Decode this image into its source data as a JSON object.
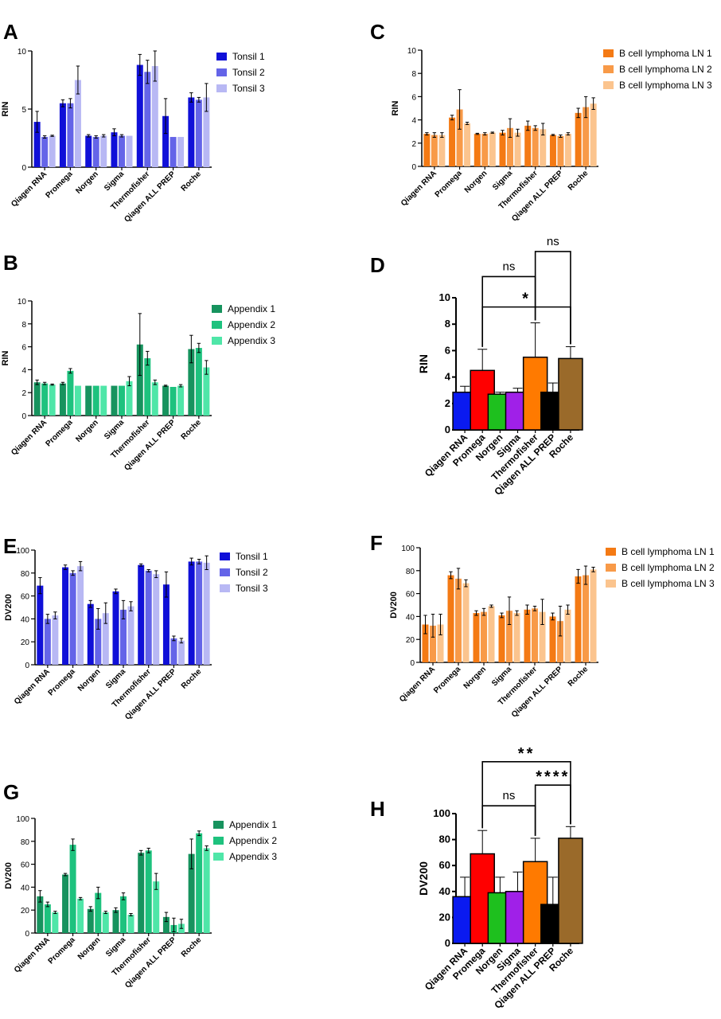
{
  "categories": [
    "Qiagen RNA",
    "Promega",
    "Norgen",
    "Sigma",
    "Thermofisher",
    "Qiagen ALL PREP",
    "Roche"
  ],
  "colors": {
    "tonsil": [
      "#1010d8",
      "#6464e8",
      "#b8b8f4"
    ],
    "lymphoma": [
      "#f47a14",
      "#f89a48",
      "#fbc48e"
    ],
    "appendix": [
      "#17935e",
      "#1ec27e",
      "#4fe6a8"
    ],
    "methods": [
      "#0a1af0",
      "#ff0000",
      "#1ec01e",
      "#a020e8",
      "#ff7a00",
      "#000000",
      "#9a6a2a"
    ]
  },
  "chart_data": [
    {
      "panel": "A",
      "type": "bar",
      "ylabel": "RIN",
      "ylim": [
        0,
        10
      ],
      "yticks": [
        0,
        5,
        10
      ],
      "palette": "tonsil",
      "legend": "right",
      "series": [
        {
          "name": "Tonsil 1",
          "values": [
            3.9,
            5.5,
            2.7,
            3.0,
            8.8,
            4.4,
            6.0
          ],
          "errors": [
            0.9,
            0.3,
            0.1,
            0.3,
            0.9,
            1.5,
            0.4
          ]
        },
        {
          "name": "Tonsil 2",
          "values": [
            2.6,
            5.5,
            2.6,
            2.7,
            8.2,
            2.6,
            5.8
          ],
          "errors": [
            0.1,
            0.4,
            0.1,
            0.1,
            1.0,
            0,
            0.2
          ]
        },
        {
          "name": "Tonsil 3",
          "values": [
            2.7,
            7.5,
            2.7,
            2.7,
            8.7,
            2.6,
            6.0
          ],
          "errors": [
            0.05,
            1.2,
            0.1,
            0,
            1.3,
            0,
            1.2
          ]
        }
      ]
    },
    {
      "panel": "C",
      "type": "bar",
      "ylabel": "RIN",
      "ylim": [
        0,
        10
      ],
      "yticks": [
        0,
        2,
        4,
        6,
        8,
        10
      ],
      "palette": "lymphoma",
      "legend": "right",
      "series": [
        {
          "name": "B cell lymphoma LN 1",
          "values": [
            2.8,
            4.2,
            2.8,
            2.9,
            3.5,
            2.7,
            4.6
          ],
          "errors": [
            0.1,
            0.2,
            0.05,
            0.2,
            0.4,
            0.05,
            0.4
          ]
        },
        {
          "name": "B cell lymphoma LN 2",
          "values": [
            2.7,
            4.9,
            2.8,
            3.3,
            3.3,
            2.6,
            5.1
          ],
          "errors": [
            0.2,
            1.7,
            0.1,
            0.8,
            0.2,
            0.1,
            0.9
          ]
        },
        {
          "name": "B cell lymphoma LN 3",
          "values": [
            2.7,
            3.7,
            2.9,
            2.9,
            3.2,
            2.8,
            5.4
          ],
          "errors": [
            0.2,
            0.1,
            0.05,
            0.3,
            0.5,
            0.1,
            0.5
          ]
        }
      ]
    },
    {
      "panel": "B",
      "type": "bar",
      "ylabel": "RIN",
      "ylim": [
        0,
        10
      ],
      "yticks": [
        0,
        2,
        4,
        6,
        8,
        10
      ],
      "palette": "appendix",
      "legend": "right",
      "series": [
        {
          "name": "Appendix 1",
          "values": [
            2.9,
            2.8,
            2.6,
            2.6,
            6.2,
            2.6,
            5.8
          ],
          "errors": [
            0.2,
            0.1,
            0,
            0,
            2.7,
            0.05,
            1.2
          ]
        },
        {
          "name": "Appendix 2",
          "values": [
            2.8,
            3.9,
            2.6,
            2.6,
            5.0,
            2.5,
            5.9
          ],
          "errors": [
            0.1,
            0.2,
            0,
            0,
            0.6,
            0,
            0.4
          ]
        },
        {
          "name": "Appendix 3",
          "values": [
            2.7,
            2.6,
            2.6,
            3.0,
            2.9,
            2.6,
            4.2
          ],
          "errors": [
            0.05,
            0,
            0,
            0.4,
            0.2,
            0.1,
            0.6
          ]
        }
      ]
    },
    {
      "panel": "D",
      "type": "bar",
      "ylabel": "RIN",
      "ylim": [
        0,
        10
      ],
      "yticks": [
        0,
        2,
        4,
        6,
        8,
        10
      ],
      "palette": "methods",
      "legend": "none",
      "series": [
        {
          "name": "",
          "values": [
            2.85,
            4.5,
            2.7,
            2.85,
            5.5,
            2.85,
            5.4
          ],
          "errors": [
            0.45,
            1.6,
            0.15,
            0.3,
            2.6,
            0.7,
            0.9
          ]
        }
      ],
      "annotations": [
        {
          "from": 1,
          "to": 4,
          "label": "ns",
          "level": 11.6
        },
        {
          "from": 4,
          "to": 6,
          "label": "ns",
          "level": 13.5
        },
        {
          "from": 1,
          "to": 6,
          "label": "*",
          "level": 9.3
        }
      ]
    },
    {
      "panel": "E",
      "type": "bar",
      "ylabel": "DV200",
      "ylim": [
        0,
        100
      ],
      "yticks": [
        0,
        20,
        40,
        60,
        80,
        100
      ],
      "palette": "tonsil",
      "legend": "right",
      "series": [
        {
          "name": "Tonsil 1",
          "values": [
            69,
            85,
            53,
            64,
            87,
            70,
            90
          ],
          "errors": [
            7,
            2,
            3,
            2,
            1,
            11,
            3
          ]
        },
        {
          "name": "Tonsil 2",
          "values": [
            40,
            80,
            40,
            48,
            82,
            23,
            90
          ],
          "errors": [
            4,
            2,
            9,
            8,
            1,
            2,
            2
          ]
        },
        {
          "name": "Tonsil 3",
          "values": [
            43,
            86,
            45,
            51,
            79,
            21,
            89
          ],
          "errors": [
            3,
            4,
            9,
            4,
            3,
            2,
            6
          ]
        }
      ]
    },
    {
      "panel": "F",
      "type": "bar",
      "ylabel": "DV200",
      "ylim": [
        0,
        100
      ],
      "yticks": [
        0,
        20,
        40,
        60,
        80,
        100
      ],
      "palette": "lymphoma",
      "legend": "right",
      "series": [
        {
          "name": "B cell lymphoma LN 1",
          "values": [
            33,
            76,
            43,
            41,
            46,
            40,
            75
          ],
          "errors": [
            8,
            3,
            2,
            2,
            4,
            3,
            6
          ]
        },
        {
          "name": "B cell lymphoma LN 2",
          "values": [
            32,
            73,
            44,
            45,
            47,
            36,
            76
          ],
          "errors": [
            10,
            9,
            3,
            12,
            2,
            13,
            8
          ]
        },
        {
          "name": "B cell lymphoma LN 3",
          "values": [
            33,
            69,
            49,
            43,
            44,
            46,
            81
          ],
          "errors": [
            9,
            3,
            1,
            2,
            11,
            4,
            2
          ]
        }
      ]
    },
    {
      "panel": "G",
      "type": "bar",
      "ylabel": "DV200",
      "ylim": [
        0,
        100
      ],
      "yticks": [
        0,
        20,
        40,
        60,
        80,
        100
      ],
      "palette": "appendix",
      "legend": "right",
      "series": [
        {
          "name": "Appendix 1",
          "values": [
            32,
            51,
            21,
            20,
            70,
            14,
            69
          ],
          "errors": [
            5,
            1,
            2,
            2,
            2,
            4,
            13
          ]
        },
        {
          "name": "Appendix 2",
          "values": [
            25,
            77,
            35,
            32,
            72,
            7,
            87
          ],
          "errors": [
            2,
            5,
            5,
            3,
            2,
            6,
            2
          ]
        },
        {
          "name": "Appendix 3",
          "values": [
            18,
            30,
            18,
            16,
            45,
            8,
            74
          ],
          "errors": [
            1,
            1,
            1,
            1,
            7,
            4,
            2
          ]
        }
      ]
    },
    {
      "panel": "H",
      "type": "bar",
      "ylabel": "DV200",
      "ylim": [
        0,
        100
      ],
      "yticks": [
        0,
        20,
        40,
        60,
        80,
        100
      ],
      "palette": "methods",
      "legend": "none",
      "series": [
        {
          "name": "",
          "values": [
            36,
            69,
            39,
            40,
            63,
            30,
            81
          ],
          "errors": [
            15,
            18,
            12,
            15,
            18,
            21,
            9
          ]
        }
      ],
      "annotations": [
        {
          "from": 1,
          "to": 4,
          "label": "ns",
          "level": 106
        },
        {
          "from": 4,
          "to": 6,
          "label": "****",
          "level": 122
        },
        {
          "from": 1,
          "to": 6,
          "label": "**",
          "level": 140
        }
      ]
    }
  ]
}
